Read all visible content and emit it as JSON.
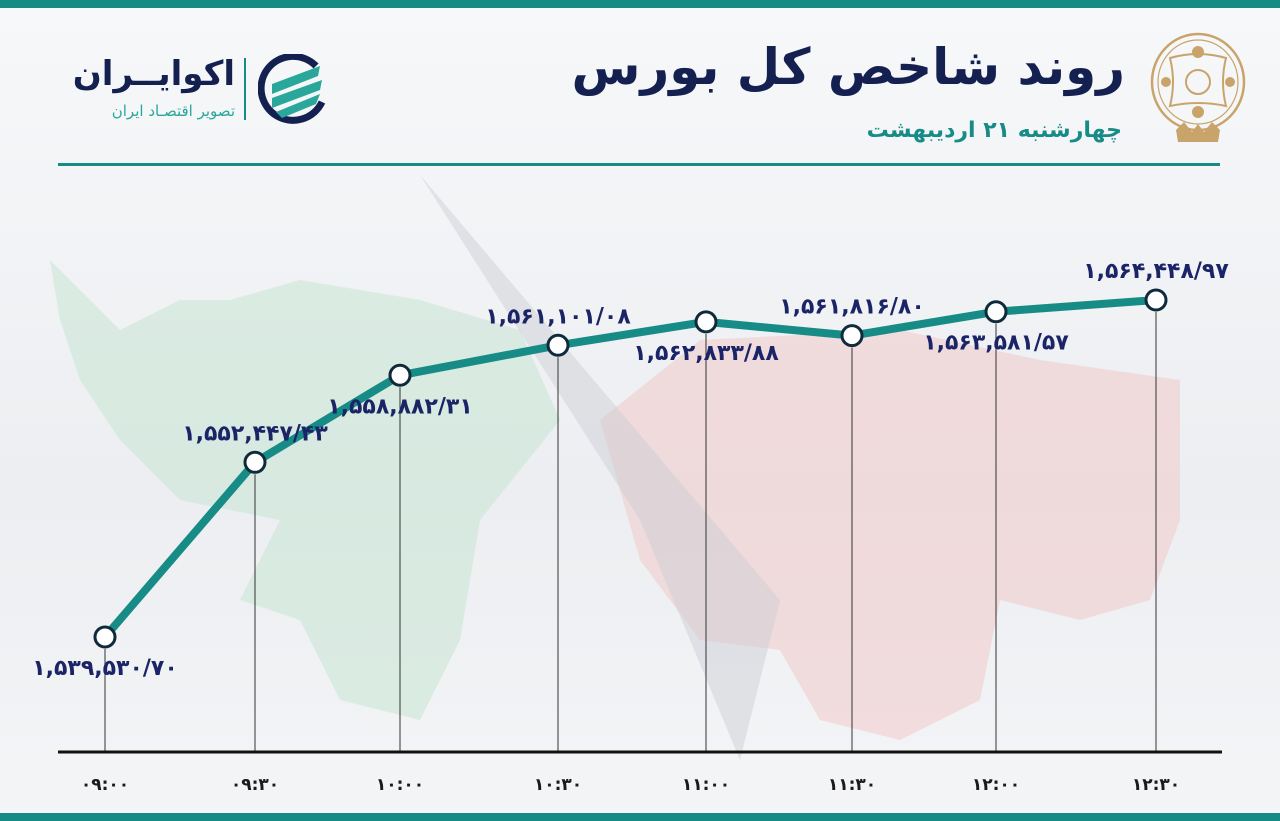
{
  "header": {
    "title": "روند شاخص کل بورس",
    "subtitle": "چهارشنبه ۲۱ اردیبهشت",
    "brand_name": "اکوایــران",
    "brand_tagline": "تصویر اقتصـاد ایران"
  },
  "colors": {
    "accent": "#178c86",
    "title": "#14204f",
    "label": "#1a2466",
    "seal": "#c9a46a"
  },
  "chart_data": {
    "type": "line",
    "title": "روند شاخص کل بورس",
    "categories": [
      "۰۹:۰۰",
      "۰۹:۳۰",
      "۱۰:۰۰",
      "۱۰:۳۰",
      "۱۱:۰۰",
      "۱۱:۳۰",
      "۱۲:۰۰",
      "۱۲:۳۰"
    ],
    "values": [
      1539530.7,
      1552447.43,
      1558882.31,
      1561101.08,
      1562833.88,
      1561816.8,
      1563581.57,
      1564448.97
    ],
    "data_labels": [
      "۱,۵۳۹,۵۳۰/۷۰",
      "۱,۵۵۲,۴۴۷/۴۳",
      "۱,۵۵۸,۸۸۲/۳۱",
      "۱,۵۶۱,۱۰۱/۰۸",
      "۱,۵۶۲,۸۳۳/۸۸",
      "۱,۵۶۱,۸۱۶/۸۰",
      "۱,۵۶۳,۵۸۱/۵۷",
      "۱,۵۶۴,۴۴۸/۹۷"
    ],
    "label_position": [
      "below",
      "above",
      "below",
      "above",
      "below",
      "above",
      "below",
      "above"
    ],
    "xlabel": "",
    "ylabel": "",
    "grid": false,
    "line_color": "#178c86"
  }
}
